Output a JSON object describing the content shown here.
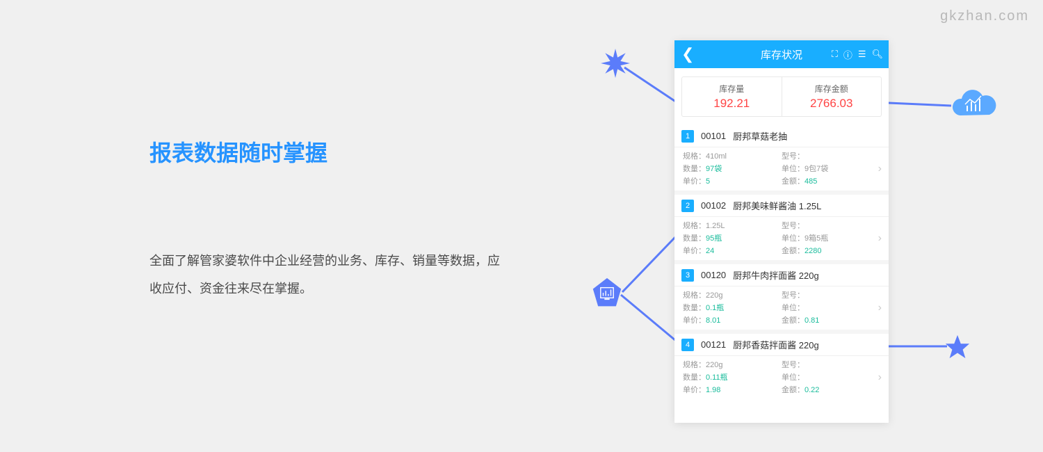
{
  "watermark": "gkzhan.com",
  "left": {
    "heading": "报表数据随时掌握",
    "description": "全面了解管家婆软件中企业经营的业务、库存、销量等数据，应收应付、资金往来尽在掌握。"
  },
  "phone": {
    "title": "库存状况",
    "summary": {
      "qty_label": "库存量",
      "qty_value": "192.21",
      "amount_label": "库存金额",
      "amount_value": "2766.03"
    },
    "items": [
      {
        "num": "1",
        "code": "00101",
        "name": "厨邦草菇老抽",
        "spec_label": "规格：",
        "spec": "410ml",
        "model_label": "型号：",
        "model": "",
        "qty_label": "数量：",
        "qty": "97袋",
        "unit_label": "单位：",
        "unit": "9包7袋",
        "price_label": "单价：",
        "price": "5",
        "amount_label": "金额：",
        "amount": "485"
      },
      {
        "num": "2",
        "code": "00102",
        "name": "厨邦美味鲜酱油 1.25L",
        "spec_label": "规格：",
        "spec": "1.25L",
        "model_label": "型号：",
        "model": "",
        "qty_label": "数量：",
        "qty": "95瓶",
        "unit_label": "单位：",
        "unit": "9箱5瓶",
        "price_label": "单价：",
        "price": "24",
        "amount_label": "金额：",
        "amount": "2280"
      },
      {
        "num": "3",
        "code": "00120",
        "name": "厨邦牛肉拌面酱 220g",
        "spec_label": "规格：",
        "spec": "220g",
        "model_label": "型号：",
        "model": "",
        "qty_label": "数量：",
        "qty": "0.1瓶",
        "unit_label": "单位：",
        "unit": "",
        "price_label": "单价：",
        "price": "8.01",
        "amount_label": "金额：",
        "amount": "0.81"
      },
      {
        "num": "4",
        "code": "00121",
        "name": "厨邦香菇拌面酱 220g",
        "spec_label": "规格：",
        "spec": "220g",
        "model_label": "型号：",
        "model": "",
        "qty_label": "数量：",
        "qty": "0.11瓶",
        "unit_label": "单位：",
        "unit": "",
        "price_label": "单价：",
        "price": "1.98",
        "amount_label": "金额：",
        "amount": "0.22"
      }
    ]
  },
  "colors": {
    "accent": "#19aeff",
    "heading": "#2693ff",
    "danger": "#ff4444",
    "teal": "#1abc9c",
    "connector": "#5b7cfa"
  }
}
